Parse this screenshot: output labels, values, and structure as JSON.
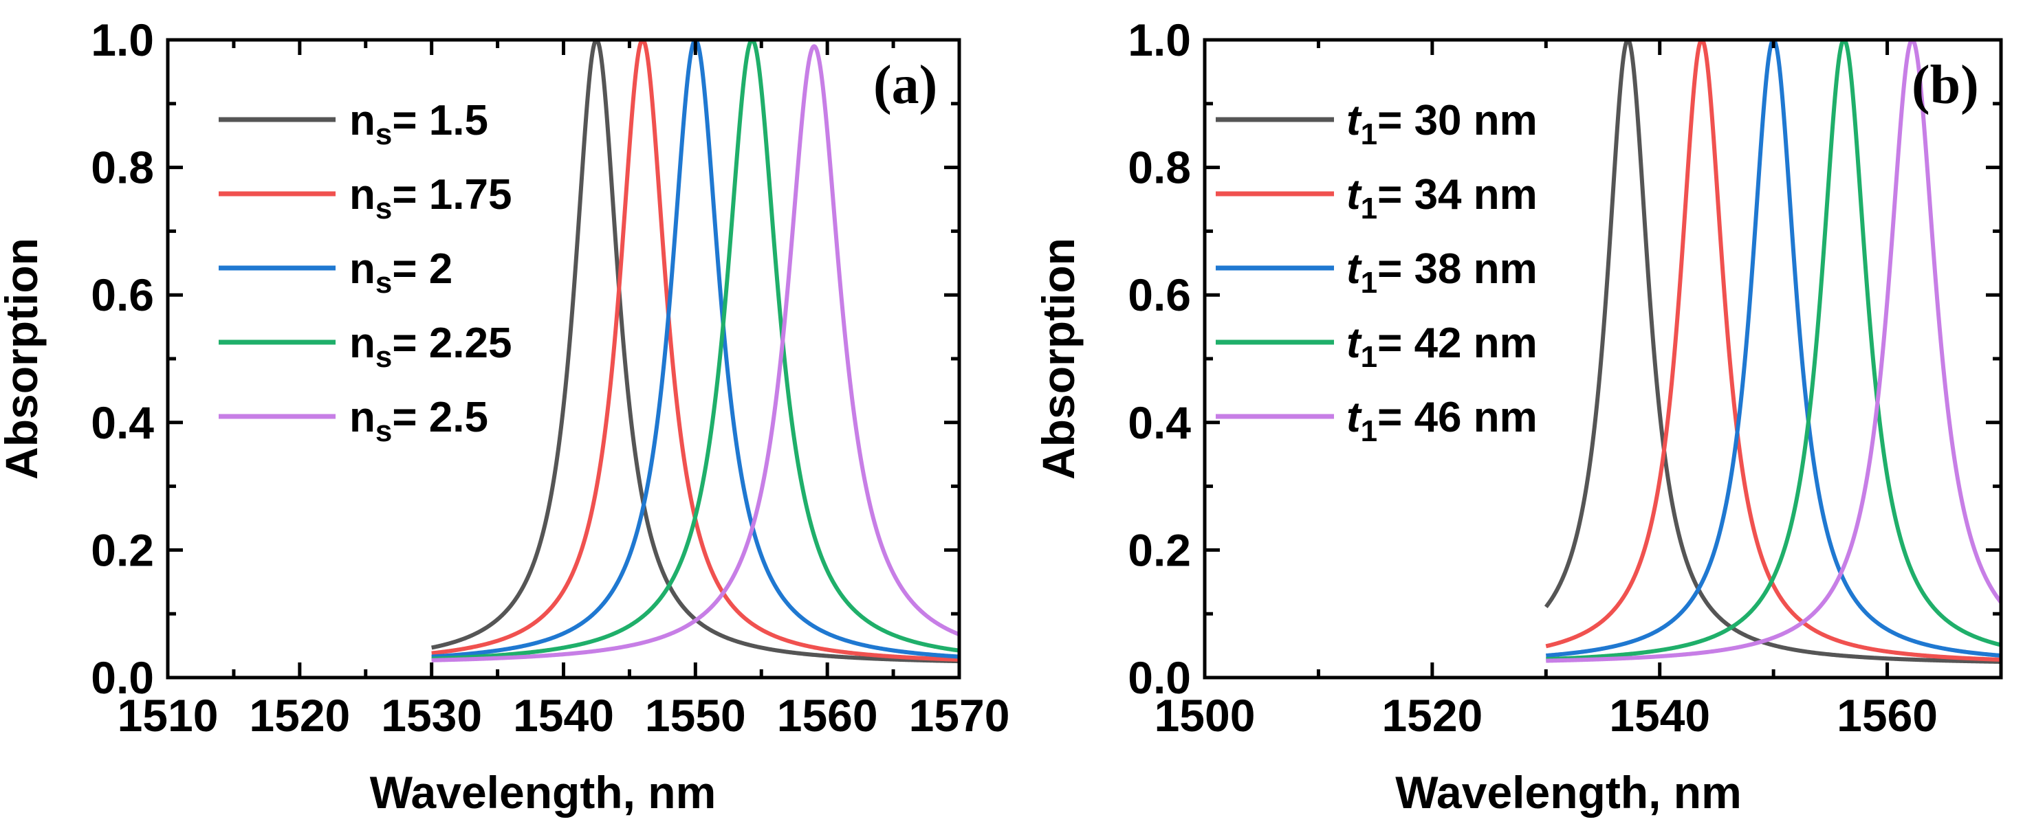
{
  "chart_data": [
    {
      "type": "line",
      "panel_label": "(a)",
      "xlabel": "Wavelength, nm",
      "ylabel": "Absorption",
      "xlim": [
        1510,
        1570
      ],
      "ylim": [
        0.0,
        1.0
      ],
      "xticks": [
        1510,
        1520,
        1530,
        1540,
        1550,
        1560,
        1570
      ],
      "xtick_labels": [
        "1510",
        "1520",
        "1530",
        "1540",
        "1550",
        "1560",
        "1570"
      ],
      "yticks": [
        0.0,
        0.2,
        0.4,
        0.6,
        0.8,
        1.0
      ],
      "ytick_labels": [
        "0.0",
        "0.2",
        "0.4",
        "0.6",
        "0.8",
        "1.0"
      ],
      "grid": false,
      "legend_position": "top-left",
      "x_range": [
        1530,
        1570
      ],
      "series": [
        {
          "name": "1.5",
          "legend_prefix": "n",
          "legend_sub": "s",
          "legend_value": "= 1.5",
          "color": "#555555",
          "peak_wavelength": 1542.5,
          "peak": 1.0,
          "fwhm": 4.2,
          "baseline": 0.02
        },
        {
          "name": "1.75",
          "legend_prefix": "n",
          "legend_sub": "s",
          "legend_value": "= 1.75",
          "color": "#f0514f",
          "peak_wavelength": 1546.0,
          "peak": 1.0,
          "fwhm": 4.4,
          "baseline": 0.02
        },
        {
          "name": "2",
          "legend_prefix": "n",
          "legend_sub": "s",
          "legend_value": "= 2",
          "color": "#1f78d1",
          "peak_wavelength": 1550.0,
          "peak": 1.0,
          "fwhm": 4.6,
          "baseline": 0.02
        },
        {
          "name": "2.25",
          "legend_prefix": "n",
          "legend_sub": "s",
          "legend_value": "= 2.25",
          "color": "#1faf6a",
          "peak_wavelength": 1554.3,
          "peak": 1.0,
          "fwhm": 4.8,
          "baseline": 0.02
        },
        {
          "name": "2.5",
          "legend_prefix": "n",
          "legend_sub": "s",
          "legend_value": "= 2.5",
          "color": "#c77ee6",
          "peak_wavelength": 1559.0,
          "peak": 0.99,
          "fwhm": 5.0,
          "baseline": 0.02
        }
      ]
    },
    {
      "type": "line",
      "panel_label": "(b)",
      "xlabel": "Wavelength, nm",
      "ylabel": "Absorption",
      "xlim": [
        1500,
        1570
      ],
      "ylim": [
        0.0,
        1.0
      ],
      "xticks": [
        1500,
        1520,
        1540,
        1560
      ],
      "xtick_labels": [
        "1500",
        "1520",
        "1540",
        "1560"
      ],
      "yticks": [
        0.0,
        0.2,
        0.4,
        0.6,
        0.8,
        1.0
      ],
      "ytick_labels": [
        "0.0",
        "0.2",
        "0.4",
        "0.6",
        "0.8",
        "1.0"
      ],
      "grid": false,
      "legend_position": "top-left",
      "x_range": [
        1530,
        1570
      ],
      "series": [
        {
          "name": "30 nm",
          "legend_prefix": "t",
          "legend_sub": "1",
          "legend_value": "= 30 nm",
          "color": "#555555",
          "peak_wavelength": 1537.2,
          "peak": 1.0,
          "fwhm": 4.6,
          "baseline": 0.02
        },
        {
          "name": "34 nm",
          "legend_prefix": "t",
          "legend_sub": "1",
          "legend_value": "= 34 nm",
          "color": "#f0514f",
          "peak_wavelength": 1543.7,
          "peak": 1.0,
          "fwhm": 4.8,
          "baseline": 0.02
        },
        {
          "name": "38 nm",
          "legend_prefix": "t",
          "legend_sub": "1",
          "legend_value": "= 38 nm",
          "color": "#1f78d1",
          "peak_wavelength": 1550.0,
          "peak": 1.0,
          "fwhm": 4.9,
          "baseline": 0.02
        },
        {
          "name": "42 nm",
          "legend_prefix": "t",
          "legend_sub": "1",
          "legend_value": "= 42 nm",
          "color": "#1faf6a",
          "peak_wavelength": 1556.2,
          "peak": 1.0,
          "fwhm": 5.0,
          "baseline": 0.02
        },
        {
          "name": "46 nm",
          "legend_prefix": "t",
          "legend_sub": "1",
          "legend_value": "= 46 nm",
          "color": "#c77ee6",
          "peak_wavelength": 1562.2,
          "peak": 1.0,
          "fwhm": 5.2,
          "baseline": 0.02
        }
      ]
    }
  ]
}
